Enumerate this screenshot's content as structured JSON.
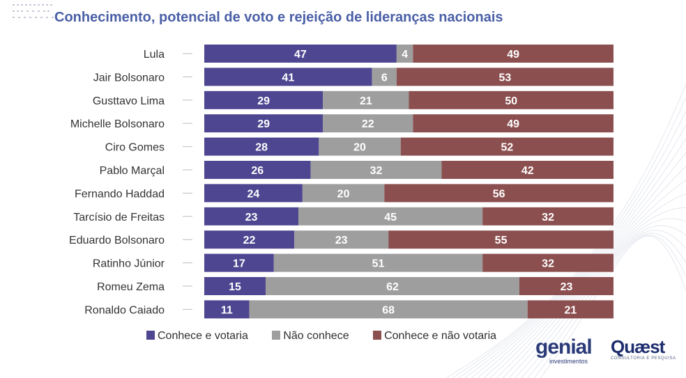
{
  "title": "Conhecimento, potencial de voto e rejeição de lideranças nacionais",
  "colors": {
    "votaria": "#4e4690",
    "nao_conhece": "#9e9e9e",
    "nao_votaria": "#8c4f4f",
    "label": "#333333"
  },
  "chart_data": {
    "type": "bar",
    "orientation": "horizontal",
    "stacked": true,
    "categories": [
      "Lula",
      "Jair Bolsonaro",
      "Gusttavo Lima",
      "Michelle Bolsonaro",
      "Ciro Gomes",
      "Pablo Marçal",
      "Fernando Haddad",
      "Tarcísio de Freitas",
      "Eduardo Bolsonaro",
      "Ratinho Júnior",
      "Romeu Zema",
      "Ronaldo Caiado"
    ],
    "series": [
      {
        "name": "Conhece e votaria",
        "values": [
          47,
          41,
          29,
          29,
          28,
          26,
          24,
          23,
          22,
          17,
          15,
          11
        ]
      },
      {
        "name": "Não conhece",
        "values": [
          4,
          6,
          21,
          22,
          20,
          32,
          20,
          45,
          23,
          51,
          62,
          68
        ]
      },
      {
        "name": "Conhece e não votaria",
        "values": [
          49,
          53,
          50,
          49,
          52,
          42,
          56,
          32,
          55,
          32,
          23,
          21
        ]
      }
    ],
    "xlim": [
      0,
      100
    ],
    "legend_position": "bottom-left"
  },
  "legend": [
    "Conhece e votaria",
    "Não conhece",
    "Conhece e não votaria"
  ],
  "brands": {
    "genial": {
      "word": "genial",
      "sub": "investimentos"
    },
    "quaest": {
      "word": "Quæst",
      "sub": "CONSULTORIA E PESQUISA"
    }
  }
}
